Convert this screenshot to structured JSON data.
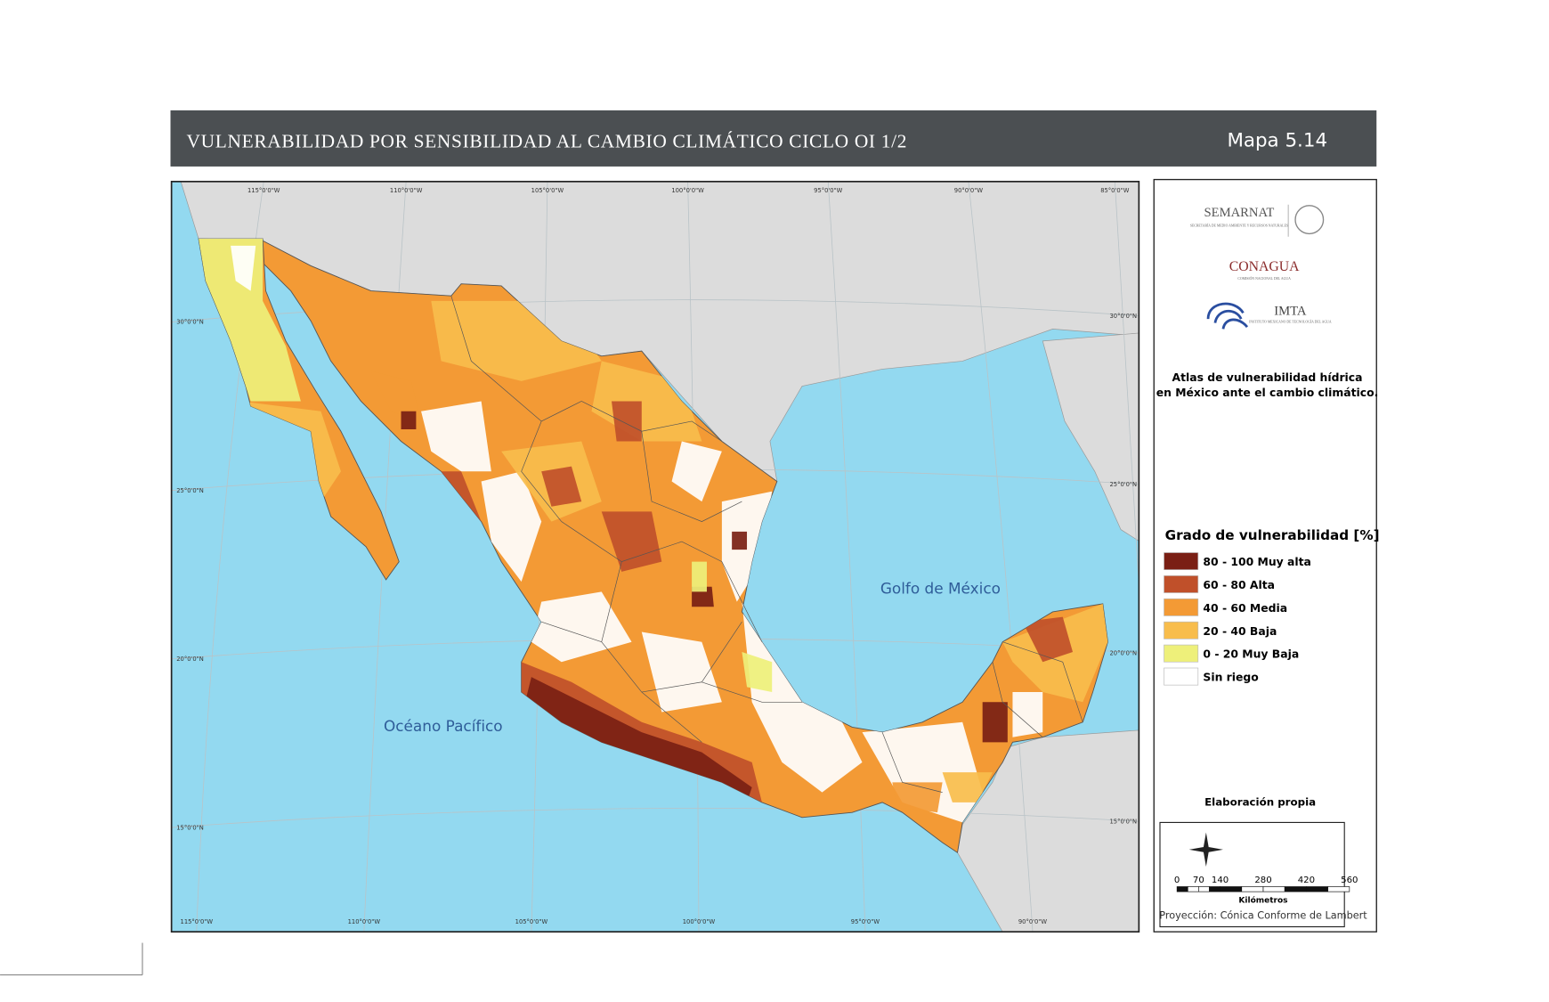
{
  "header": {
    "title": "VULNERABILIDAD POR SENSIBILIDAD AL CAMBIO CLIMÁTICO CICLO OI 1/2",
    "map_number": "Mapa 5.14"
  },
  "map": {
    "longitude_labels_top": [
      "115°0'0\"W",
      "110°0'0\"W",
      "105°0'0\"W",
      "100°0'0\"W",
      "95°0'0\"W",
      "90°0'0\"W",
      "85°0'0\"W"
    ],
    "longitude_labels_bottom": [
      "115°0'0\"W",
      "110°0'0\"W",
      "105°0'0\"W",
      "100°0'0\"W",
      "95°0'0\"W",
      "90°0'0\"W"
    ],
    "latitude_labels_left": [
      "30°0'0\"N",
      "25°0'0\"N",
      "20°0'0\"N",
      "15°0'0\"N"
    ],
    "latitude_labels_right": [
      "30°0'0\"N",
      "25°0'0\"N",
      "20°0'0\"N",
      "15°0'0\"N"
    ],
    "water_labels": [
      "Golfo de México",
      "Océano Pacífico"
    ]
  },
  "sidebar": {
    "logos": [
      {
        "name": "SEMARNAT",
        "subtitle": "SECRETARÍA DE MEDIO AMBIENTE Y RECURSOS NATURALES"
      },
      {
        "name": "CONAGUA",
        "subtitle": "COMISIÓN NACIONAL DEL AGUA"
      },
      {
        "name": "IMTA",
        "subtitle": "INSTITUTO MEXICANO DE TECNOLOGÍA DEL AGUA"
      }
    ],
    "atlas_title": [
      "Atlas de vulnerabilidad  hídrica",
      "en México ante el cambio climático."
    ],
    "legend": {
      "title": "Grado de vulnerabilidad [%]",
      "items": [
        {
          "label": "80 - 100 Muy alta",
          "color": "#7a1f14"
        },
        {
          "label": "60 - 80 Alta",
          "color": "#c0502a"
        },
        {
          "label": "40 - 60 Media",
          "color": "#f39a35"
        },
        {
          "label": "20 - 40 Baja",
          "color": "#f8bd4c"
        },
        {
          "label": "0 - 20 Muy Baja",
          "color": "#eef07a"
        },
        {
          "label": "Sin riego",
          "color": "#ffffff"
        }
      ]
    },
    "credit": "Elaboración propia",
    "scale_bar": {
      "ticks": [
        0,
        70,
        140,
        280,
        420,
        560
      ],
      "unit": "Kilómetros"
    },
    "projection": "Proyección: Cónica Conforme de Lambert"
  }
}
